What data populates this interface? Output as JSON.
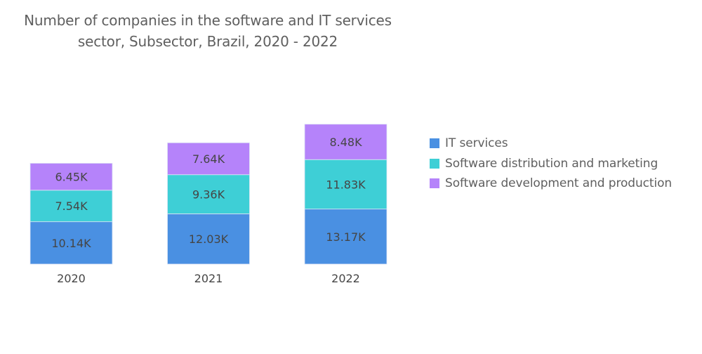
{
  "chart_data": {
    "type": "bar",
    "stacked": true,
    "title_lines": [
      "Number of companies in the software and IT services",
      "sector, Subsector, Brazil, 2020 - 2022"
    ],
    "categories": [
      "2020",
      "2021",
      "2022"
    ],
    "series": [
      {
        "name": "IT services",
        "color": "#4a90e2",
        "values": [
          10.14,
          12.03,
          13.17
        ],
        "labels": [
          "10.14K",
          "12.03K",
          "13.17K"
        ]
      },
      {
        "name": "Software distribution and marketing",
        "color": "#3ecfd6",
        "values": [
          7.54,
          9.36,
          11.83
        ],
        "labels": [
          "7.54K",
          "9.36K",
          "11.83K"
        ]
      },
      {
        "name": "Software development and production",
        "color": "#b583fa",
        "values": [
          6.45,
          7.64,
          8.48
        ],
        "labels": [
          "6.45K",
          "7.64K",
          "8.48K"
        ]
      }
    ],
    "value_unit": "thousand companies",
    "xlabel": "",
    "ylabel": "",
    "grid": false,
    "y_axis_visible": false,
    "legend_position": "right"
  }
}
